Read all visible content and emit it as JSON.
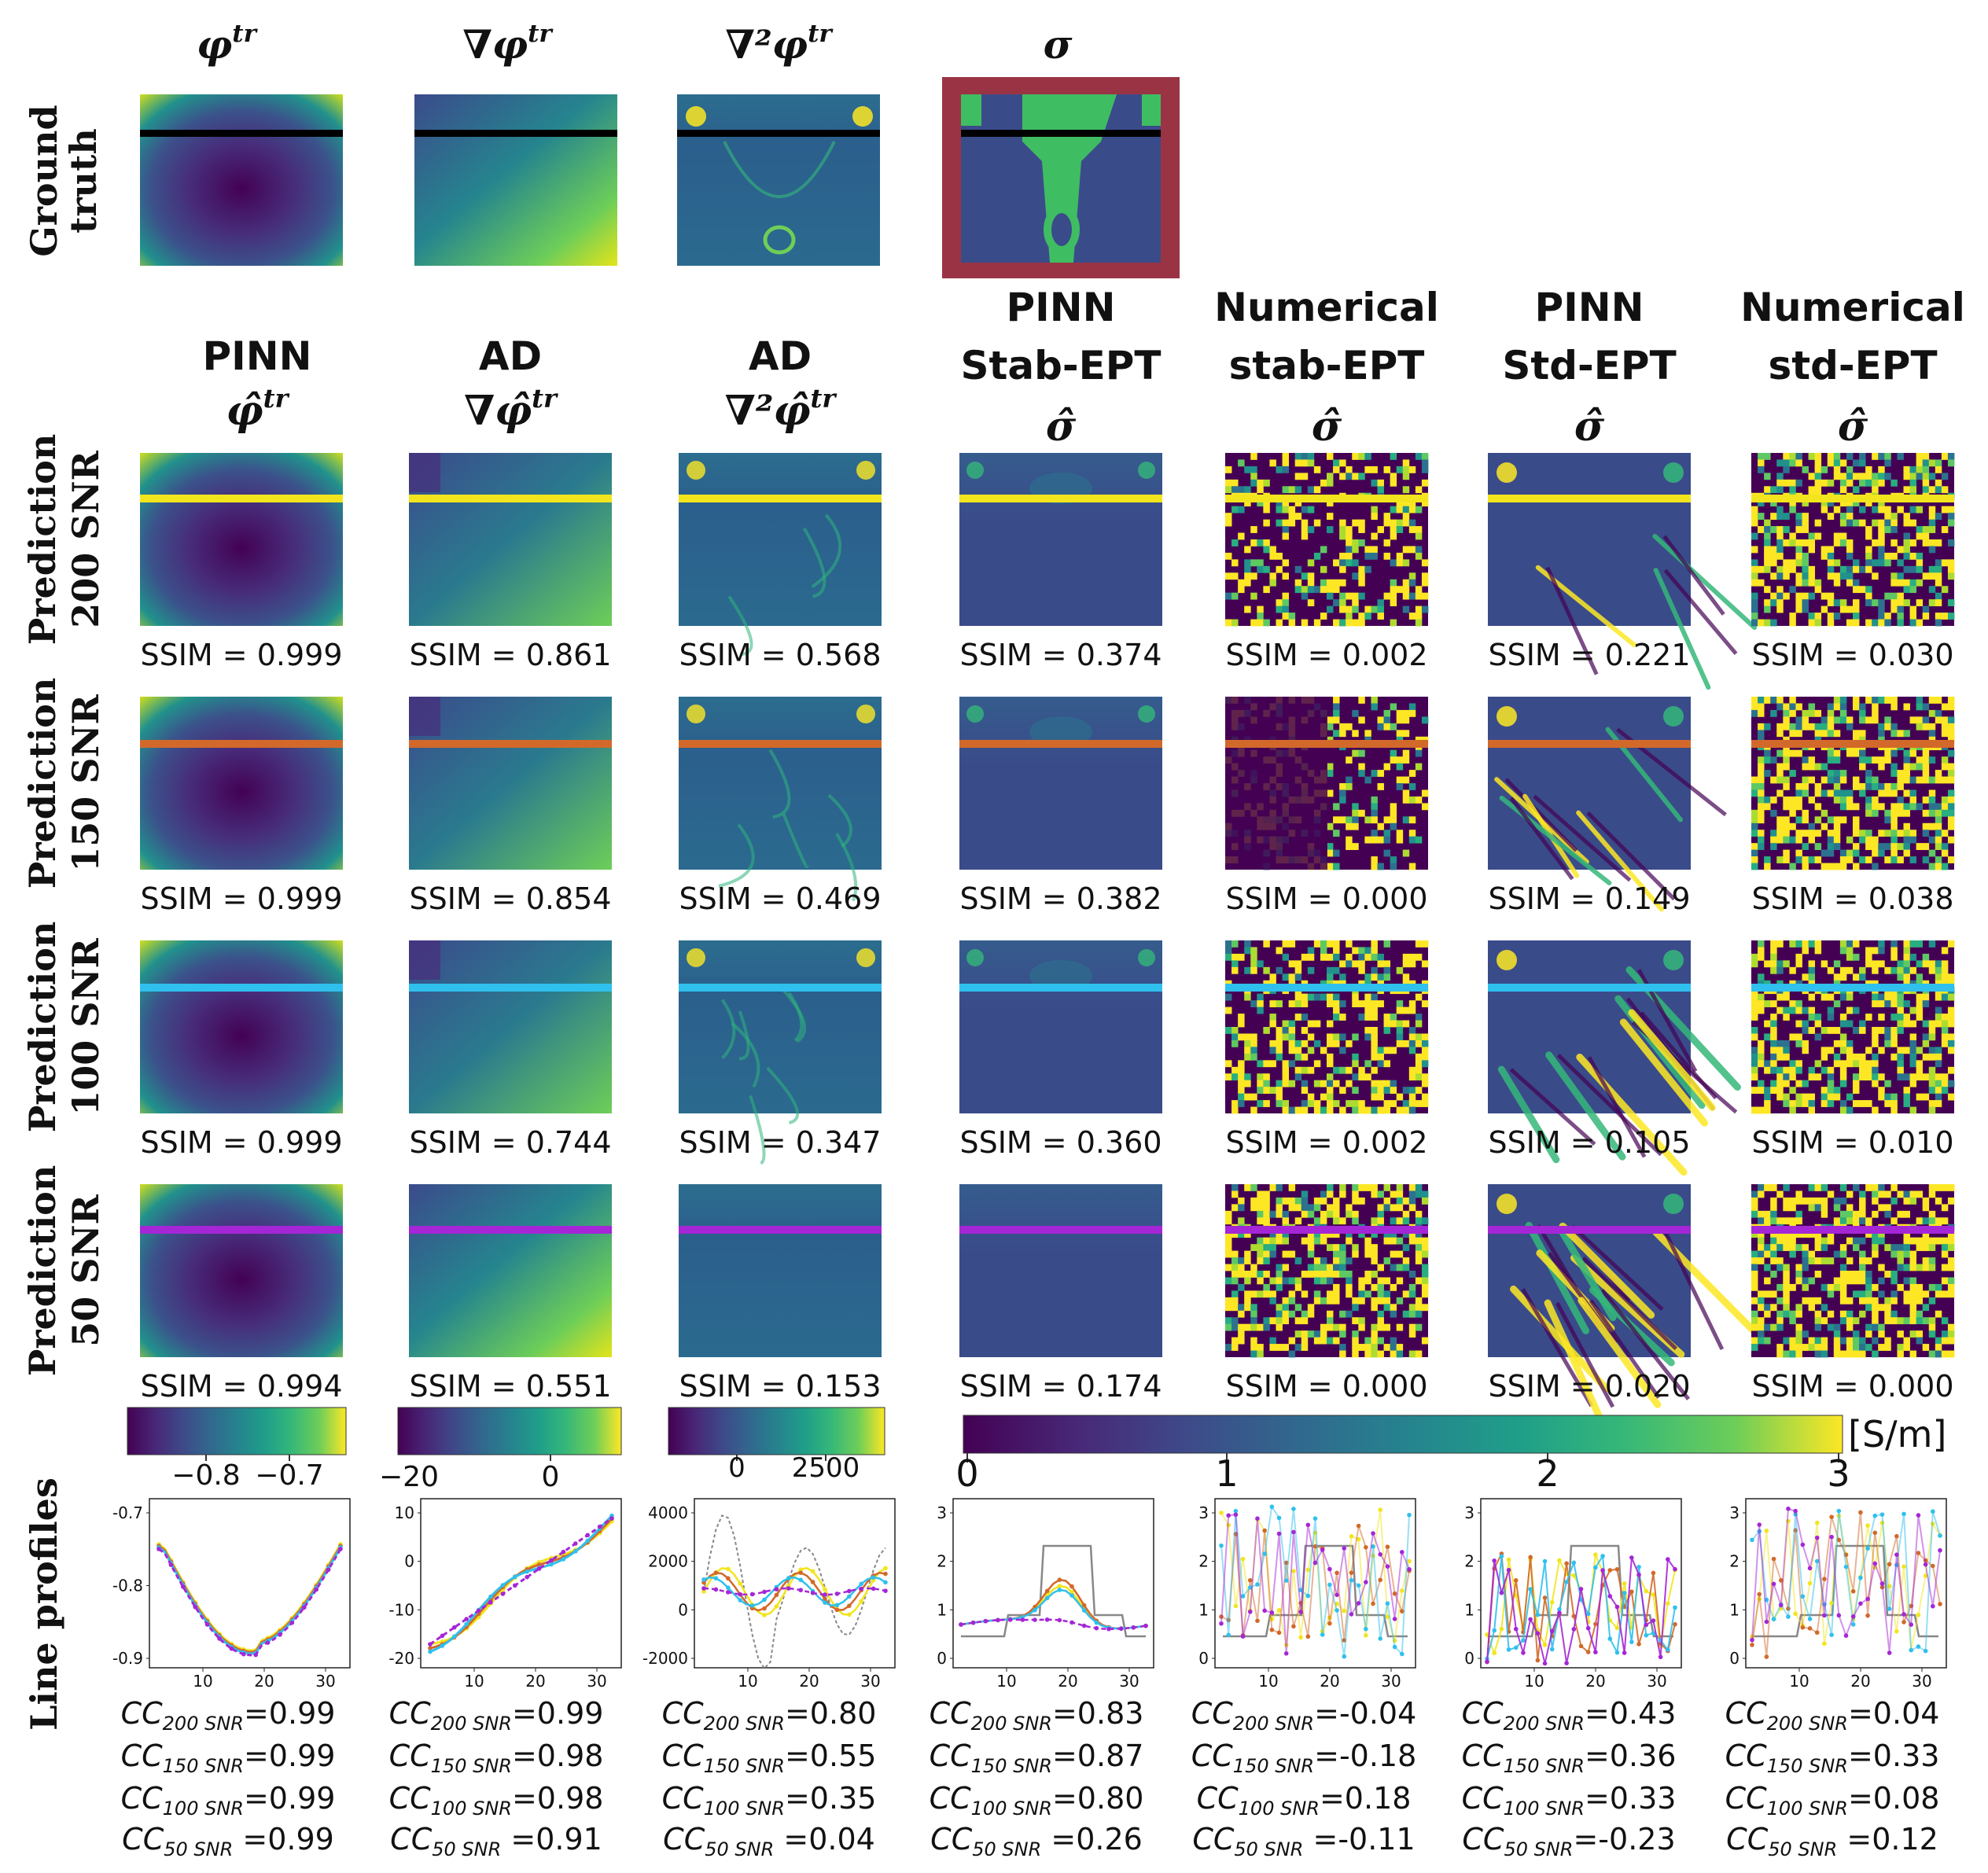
{
  "colors": {
    "line_200": "#f2e51d",
    "line_150": "#d2692a",
    "line_100": "#2fc0ee",
    "line_50": "#a526d6",
    "ground_line": "#000000",
    "sigma_frame": "#9a3444",
    "gt_sigma_bg": "#3a4b8a",
    "gt_sigma_fg": "#3fbd62"
  },
  "ground_truth": {
    "row_label": [
      "Ground",
      "truth"
    ],
    "titles": [
      "φ",
      "∇φ",
      "∇²φ",
      "σ"
    ],
    "title_superscripts": [
      "tr",
      "tr",
      "tr",
      ""
    ]
  },
  "columns": [
    {
      "label_lines": [
        "PINN"
      ],
      "symbol": "φ̂",
      "sup": "tr"
    },
    {
      "label_lines": [
        "AD"
      ],
      "symbol": "∇φ̂",
      "sup": "tr"
    },
    {
      "label_lines": [
        "AD"
      ],
      "symbol": "∇²φ̂",
      "sup": "tr"
    },
    {
      "label_lines": [
        "PINN",
        "Stab-EPT"
      ],
      "symbol": "σ̂",
      "sup": ""
    },
    {
      "label_lines": [
        "Numerical",
        "stab-EPT"
      ],
      "symbol": "σ̂",
      "sup": ""
    },
    {
      "label_lines": [
        "PINN",
        "Std-EPT"
      ],
      "symbol": "σ̂",
      "sup": ""
    },
    {
      "label_lines": [
        "Numerical",
        "std-EPT"
      ],
      "symbol": "σ̂",
      "sup": ""
    }
  ],
  "rows": [
    {
      "label": [
        "Prediction",
        "200 SNR"
      ],
      "ssim": [
        "SSIM = 0.999",
        "SSIM = 0.861",
        "SSIM = 0.568",
        "SSIM = 0.374",
        "SSIM = 0.002",
        "SSIM = 0.221",
        "SSIM = 0.030"
      ]
    },
    {
      "label": [
        "Prediction",
        "150 SNR"
      ],
      "ssim": [
        "SSIM = 0.999",
        "SSIM = 0.854",
        "SSIM = 0.469",
        "SSIM = 0.382",
        "SSIM = 0.000",
        "SSIM = 0.149",
        "SSIM = 0.038"
      ]
    },
    {
      "label": [
        "Prediction",
        "100 SNR"
      ],
      "ssim": [
        "SSIM = 0.999",
        "SSIM = 0.744",
        "SSIM = 0.347",
        "SSIM = 0.360",
        "SSIM = 0.002",
        "SSIM = 0.105",
        "SSIM = 0.010"
      ]
    },
    {
      "label": [
        "Prediction",
        "50 SNR"
      ],
      "ssim": [
        "SSIM = 0.994",
        "SSIM = 0.551",
        "SSIM = 0.153",
        "SSIM = 0.174",
        "SSIM = 0.000",
        "SSIM = 0.020",
        "SSIM = 0.000"
      ]
    }
  ],
  "colorbars": {
    "phi_ticks": [
      "−0.8",
      "−0.7"
    ],
    "grad_ticks": [
      "−20",
      "0"
    ],
    "lap_ticks": [
      "0",
      "2500"
    ],
    "sigma_ticks": [
      "0",
      "1",
      "2",
      "3"
    ],
    "sigma_unit": "[S/m]"
  },
  "line_profiles_label": "Line profiles",
  "plots": [
    {
      "yticks": [
        "-0.7",
        "-0.8",
        "-0.9"
      ],
      "xticks": [
        "10",
        "20",
        "30"
      ]
    },
    {
      "yticks": [
        "10",
        "0",
        "-10",
        "-20"
      ],
      "xticks": [
        "10",
        "20",
        "30"
      ]
    },
    {
      "yticks": [
        "4000",
        "2000",
        "0",
        "-2000"
      ],
      "xticks": [
        "10",
        "20",
        "30"
      ]
    },
    {
      "yticks": [
        "3",
        "2",
        "1",
        "0"
      ],
      "xticks": [
        "10",
        "20",
        "30"
      ]
    },
    {
      "yticks": [
        "3",
        "2",
        "1",
        "0"
      ],
      "xticks": [
        "10",
        "20",
        "30"
      ]
    },
    {
      "yticks": [
        "3",
        "2",
        "1",
        "0"
      ],
      "xticks": [
        "10",
        "20",
        "30"
      ]
    },
    {
      "yticks": [
        "3",
        "2",
        "1",
        "0"
      ],
      "xticks": [
        "10",
        "20",
        "30"
      ]
    }
  ],
  "cc_prefix": "CC",
  "cc_subs": [
    "200 SNR",
    "150 SNR",
    "100 SNR",
    "50 SNR"
  ],
  "cc_values": [
    [
      "=0.99",
      "=0.99",
      "=0.99",
      " =0.99"
    ],
    [
      "=0.99",
      "=0.98",
      "=0.98",
      " =0.91"
    ],
    [
      "=0.80",
      "=0.55",
      "=0.35",
      " =0.04"
    ],
    [
      "=0.83",
      "=0.87",
      "=0.80",
      " =0.26"
    ],
    [
      "=-0.04",
      "=-0.18",
      "=0.18",
      " =-0.11"
    ],
    [
      "=0.43",
      "=0.36",
      "=0.33",
      "=-0.23"
    ],
    [
      "=0.04",
      "=0.33",
      "=0.08",
      " =0.12"
    ]
  ]
}
